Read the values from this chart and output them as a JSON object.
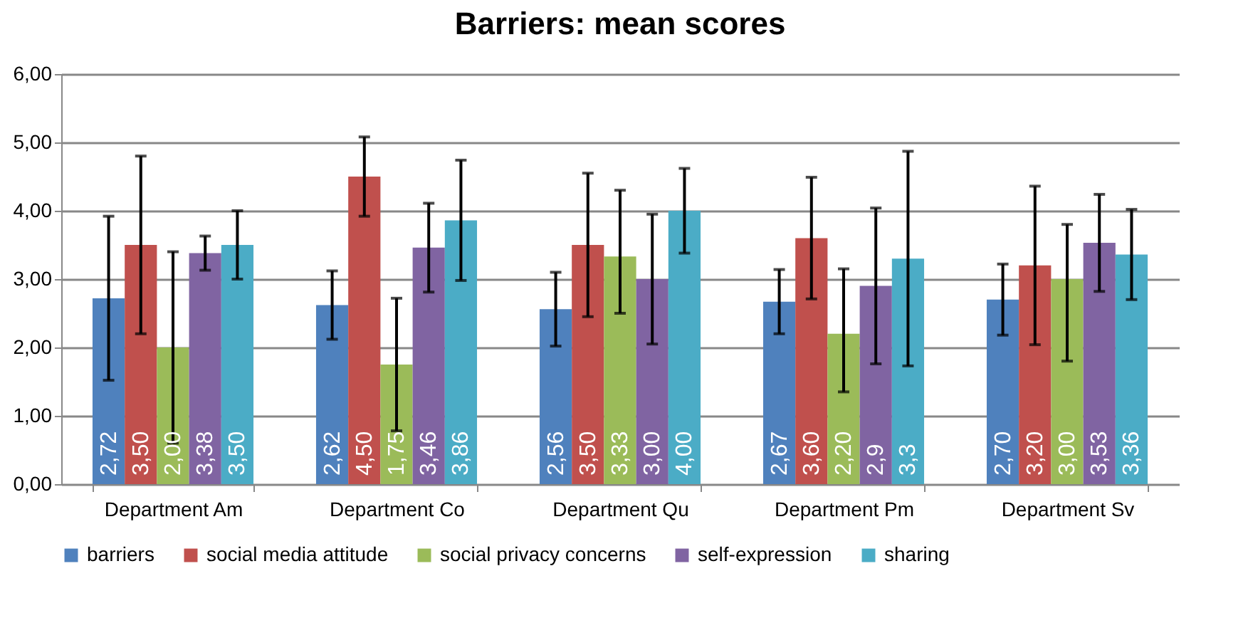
{
  "chart_data": {
    "type": "bar",
    "title": "Barriers: mean scores",
    "categories": [
      "Department Am",
      "Department Co",
      "Department Qu",
      "Department Pm",
      "Department Sv"
    ],
    "series": [
      {
        "name": "barriers",
        "color": "#4f81bd",
        "values": [
          2.72,
          2.62,
          2.56,
          2.67,
          2.7
        ],
        "value_labels": [
          "2,72",
          "2,62",
          "2,56",
          "2,67",
          "2,70"
        ],
        "errors": [
          [
            1.52,
            3.92
          ],
          [
            2.12,
            3.12
          ],
          [
            2.02,
            3.1
          ],
          [
            2.2,
            3.14
          ],
          [
            2.18,
            3.22
          ]
        ]
      },
      {
        "name": "social media attitude",
        "color": "#c0504d",
        "values": [
          3.5,
          4.5,
          3.5,
          3.6,
          3.2
        ],
        "value_labels": [
          "3,50",
          "4,50",
          "3,50",
          "3,60",
          "3,20"
        ],
        "errors": [
          [
            2.2,
            4.8
          ],
          [
            3.92,
            5.08
          ],
          [
            2.45,
            4.55
          ],
          [
            2.71,
            4.49
          ],
          [
            2.04,
            4.36
          ]
        ]
      },
      {
        "name": "social privacy concerns",
        "color": "#9bbb59",
        "values": [
          2.0,
          1.75,
          3.33,
          2.2,
          3.0
        ],
        "value_labels": [
          "2,00",
          "1,75",
          "3,33",
          "2,20",
          "3,00"
        ],
        "errors": [
          [
            0.6,
            3.4
          ],
          [
            0.78,
            2.72
          ],
          [
            2.5,
            4.3
          ],
          [
            1.35,
            3.15
          ],
          [
            1.8,
            3.8
          ]
        ]
      },
      {
        "name": "self-expression",
        "color": "#8064a2",
        "values": [
          3.38,
          3.46,
          3.0,
          2.9,
          3.53
        ],
        "value_labels": [
          "3,38",
          "3,46",
          "3,00",
          "2,9",
          "3,53"
        ],
        "errors": [
          [
            3.13,
            3.63
          ],
          [
            2.81,
            4.11
          ],
          [
            2.05,
            3.95
          ],
          [
            1.76,
            4.04
          ],
          [
            2.82,
            4.24
          ]
        ]
      },
      {
        "name": "sharing",
        "color": "#4bacc6",
        "values": [
          3.5,
          3.86,
          4.0,
          3.3,
          3.36
        ],
        "value_labels": [
          "3,50",
          "3,86",
          "4,00",
          "3,3",
          "3,36"
        ],
        "errors": [
          [
            3.0,
            4.0
          ],
          [
            2.98,
            4.74
          ],
          [
            3.38,
            4.62
          ],
          [
            1.73,
            4.87
          ],
          [
            2.7,
            4.02
          ]
        ]
      }
    ],
    "ylim": [
      0,
      6
    ],
    "yticks": [
      {
        "value": 0,
        "label": "0,00"
      },
      {
        "value": 1,
        "label": "1,00"
      },
      {
        "value": 2,
        "label": "2,00"
      },
      {
        "value": 3,
        "label": "3,00"
      },
      {
        "value": 4,
        "label": "4,00"
      },
      {
        "value": 5,
        "label": "5,00"
      },
      {
        "value": 6,
        "label": "6,00"
      }
    ],
    "grid": "y",
    "legend": "bottom"
  }
}
